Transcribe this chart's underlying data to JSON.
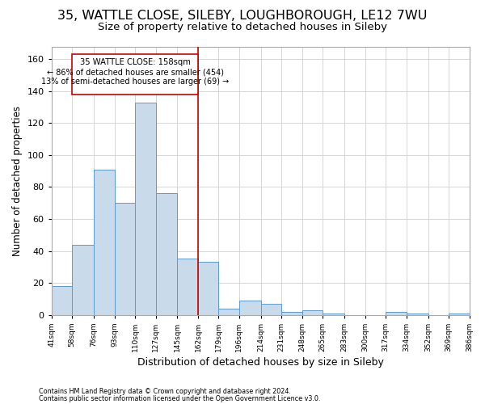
{
  "title1": "35, WATTLE CLOSE, SILEBY, LOUGHBOROUGH, LE12 7WU",
  "title2": "Size of property relative to detached houses in Sileby",
  "xlabel": "Distribution of detached houses by size in Sileby",
  "ylabel": "Number of detached properties",
  "footer1": "Contains HM Land Registry data © Crown copyright and database right 2024.",
  "footer2": "Contains public sector information licensed under the Open Government Licence v3.0.",
  "annotation_title": "35 WATTLE CLOSE: 158sqm",
  "annotation_line1": "← 86% of detached houses are smaller (454)",
  "annotation_line2": "13% of semi-detached houses are larger (69) →",
  "vline_x": 162,
  "bin_edges": [
    41,
    58,
    76,
    93,
    110,
    127,
    145,
    162,
    179,
    196,
    214,
    231,
    248,
    265,
    283,
    300,
    317,
    334,
    352,
    369,
    386
  ],
  "bin_labels": [
    "41sqm",
    "58sqm",
    "76sqm",
    "93sqm",
    "110sqm",
    "127sqm",
    "145sqm",
    "162sqm",
    "179sqm",
    "196sqm",
    "214sqm",
    "231sqm",
    "248sqm",
    "265sqm",
    "283sqm",
    "300sqm",
    "317sqm",
    "334sqm",
    "352sqm",
    "369sqm",
    "386sqm"
  ],
  "bar_heights": [
    18,
    44,
    91,
    70,
    133,
    76,
    35,
    33,
    4,
    9,
    7,
    2,
    3,
    1,
    0,
    0,
    2,
    1,
    0,
    1
  ],
  "bar_color": "#c9daea",
  "bar_edge_color": "#5b9bd5",
  "vline_color": "#cc0000",
  "box_edge_color": "#cc0000",
  "ylim": [
    0,
    168
  ],
  "yticks": [
    0,
    20,
    40,
    60,
    80,
    100,
    120,
    140,
    160
  ],
  "grid_color": "#d0d0d0",
  "bg_color": "#ffffff",
  "title1_fontsize": 11.5,
  "title2_fontsize": 9.5,
  "xlabel_fontsize": 9,
  "ylabel_fontsize": 8.5
}
